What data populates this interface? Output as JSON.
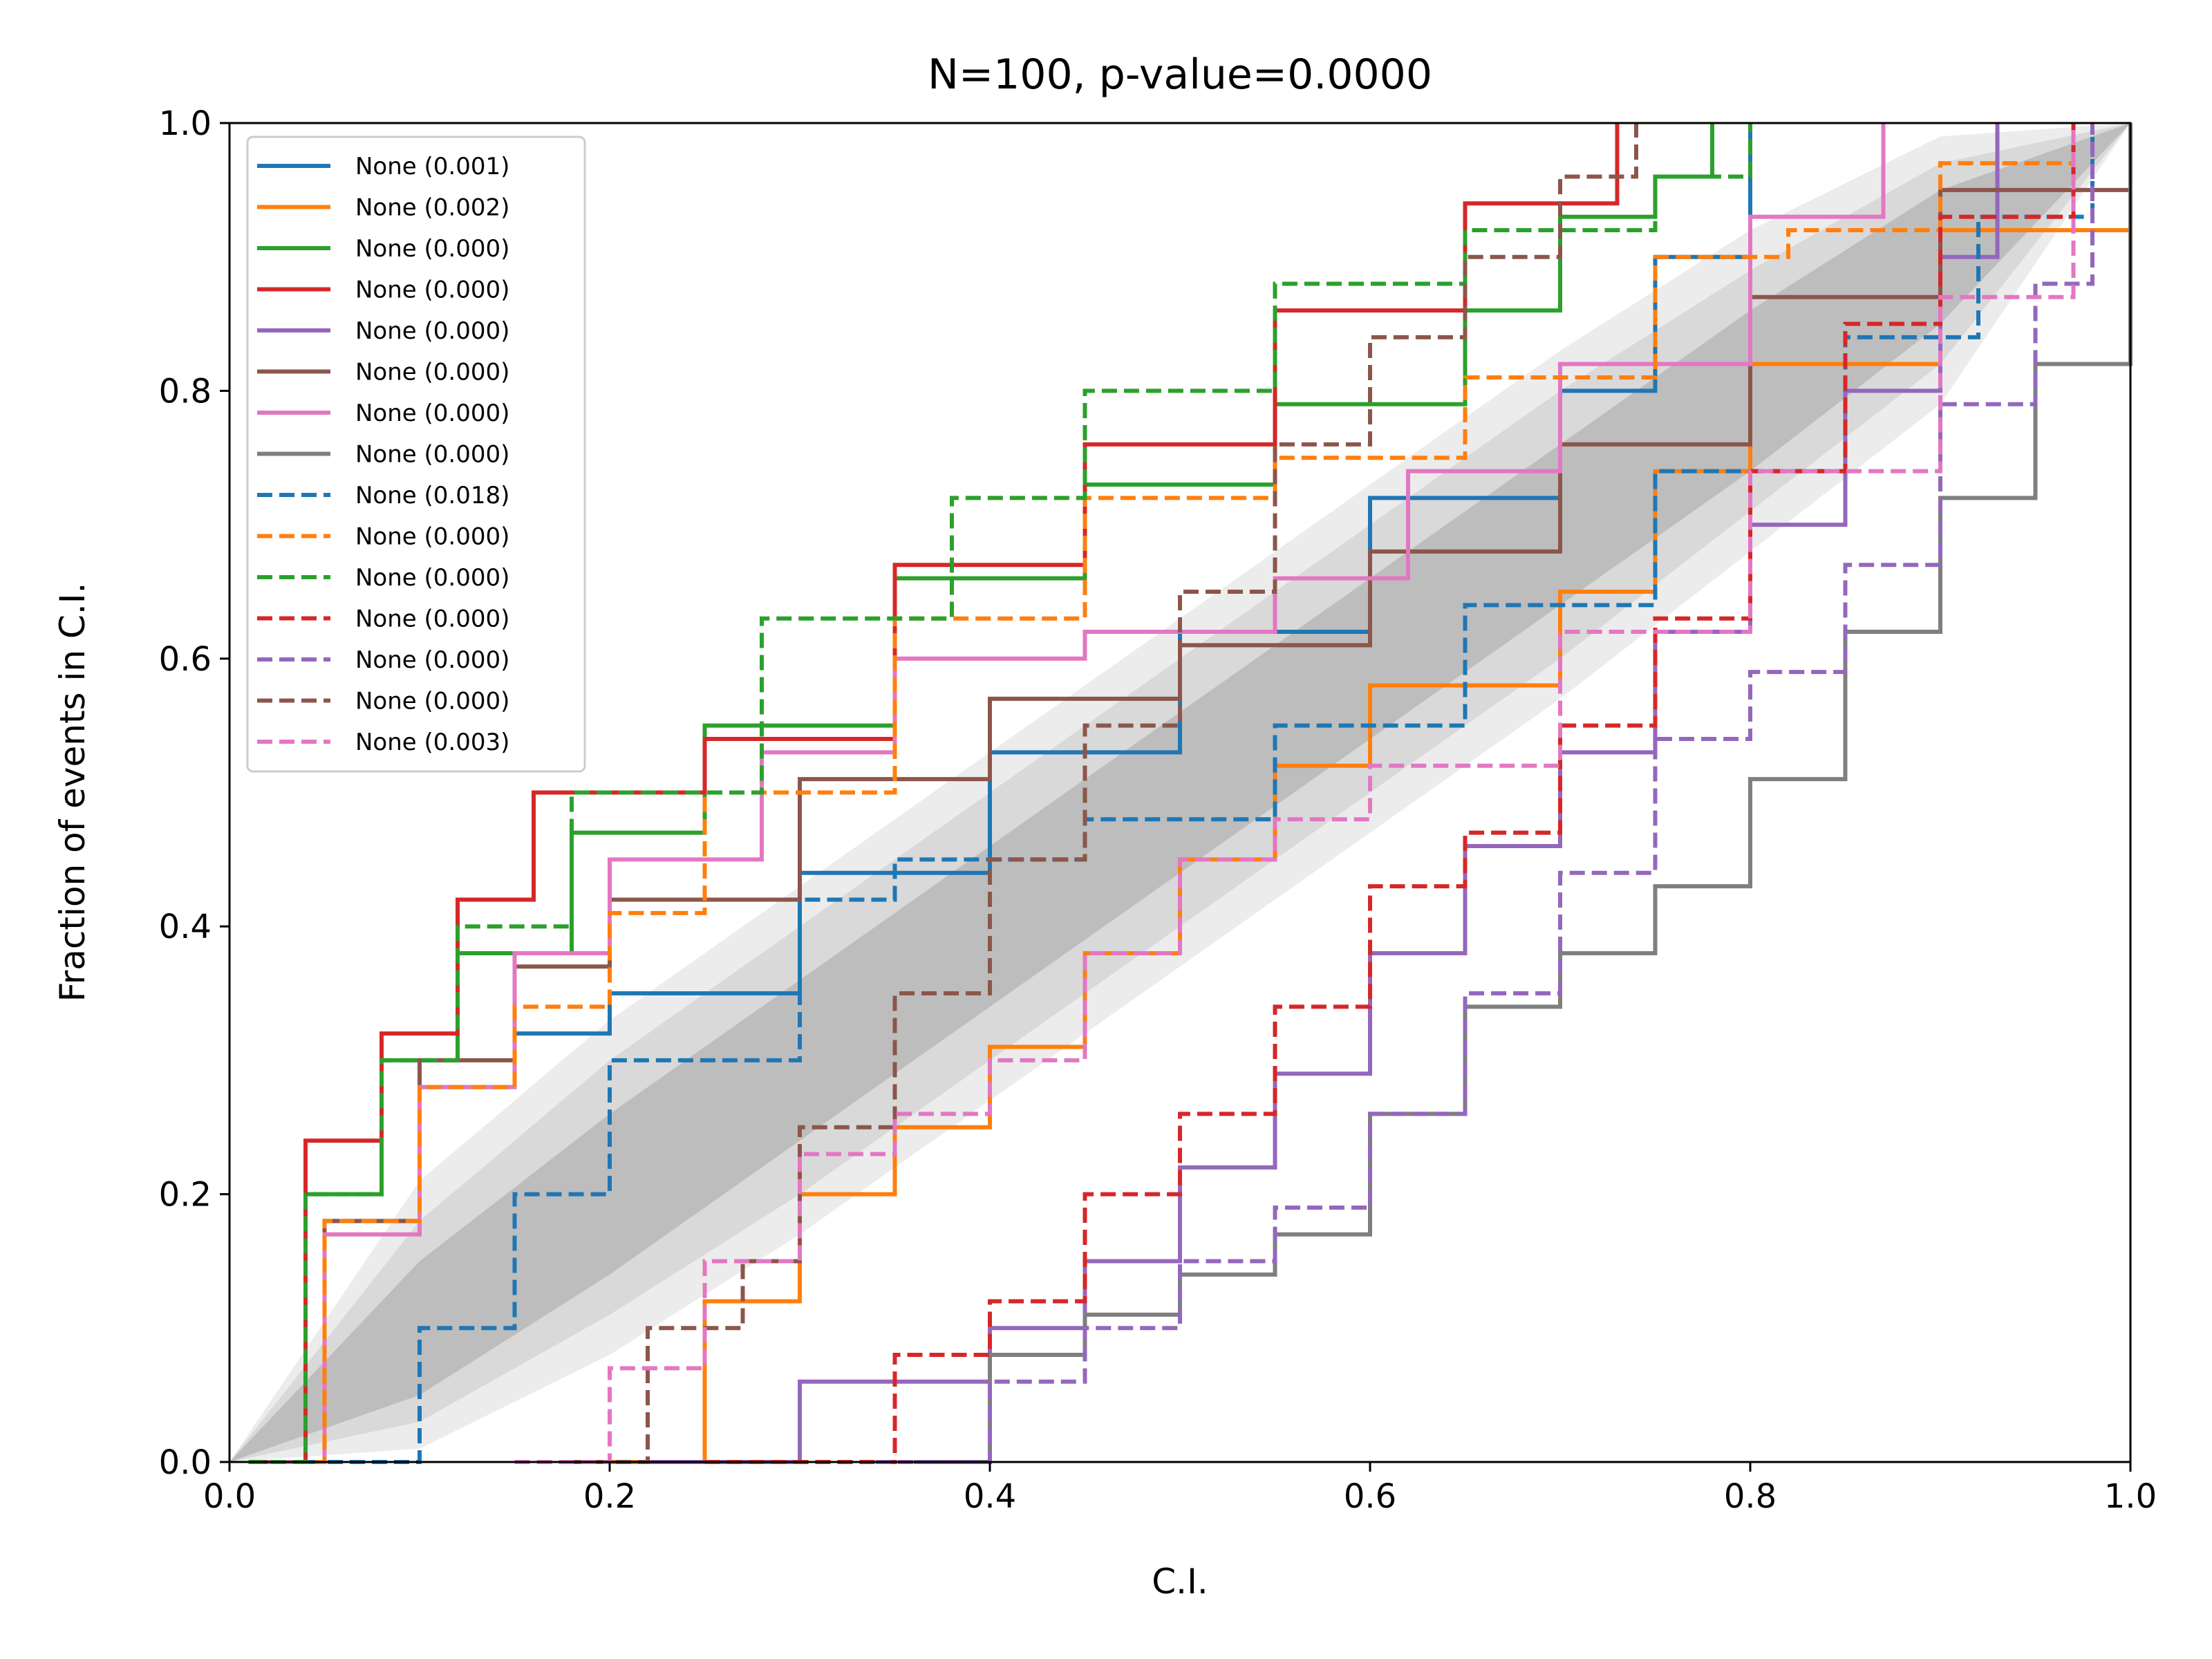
{
  "chart_data": {
    "type": "line",
    "title": "N=100, p-value=0.0000",
    "xlabel": "C.I.",
    "ylabel": "Fraction of events in C.I.",
    "xlim": [
      0,
      1
    ],
    "ylim": [
      0,
      1
    ],
    "xticks": [
      "0.0",
      "0.2",
      "0.4",
      "0.6",
      "0.8",
      "1.0"
    ],
    "yticks": [
      "0.0",
      "0.2",
      "0.4",
      "0.6",
      "0.8",
      "1.0"
    ],
    "grid": false,
    "legend_position": "upper-left",
    "confidence_bands": [
      {
        "level": "1-sigma",
        "color": "#bdbdbd",
        "lower": [
          [
            0,
            0
          ],
          [
            0.1,
            0.05
          ],
          [
            0.2,
            0.14
          ],
          [
            0.3,
            0.24
          ],
          [
            0.4,
            0.34
          ],
          [
            0.5,
            0.44
          ],
          [
            0.6,
            0.54
          ],
          [
            0.7,
            0.64
          ],
          [
            0.8,
            0.74
          ],
          [
            0.9,
            0.85
          ],
          [
            1,
            1
          ]
        ],
        "upper": [
          [
            0,
            0
          ],
          [
            0.1,
            0.15
          ],
          [
            0.2,
            0.26
          ],
          [
            0.3,
            0.36
          ],
          [
            0.4,
            0.46
          ],
          [
            0.5,
            0.56
          ],
          [
            0.6,
            0.66
          ],
          [
            0.7,
            0.76
          ],
          [
            0.8,
            0.86
          ],
          [
            0.9,
            0.95
          ],
          [
            1,
            1
          ]
        ]
      },
      {
        "level": "2-sigma",
        "color": "#d9d9d9",
        "lower": [
          [
            0,
            0
          ],
          [
            0.1,
            0.03
          ],
          [
            0.2,
            0.11
          ],
          [
            0.3,
            0.2
          ],
          [
            0.4,
            0.3
          ],
          [
            0.5,
            0.4
          ],
          [
            0.6,
            0.5
          ],
          [
            0.7,
            0.6
          ],
          [
            0.8,
            0.71
          ],
          [
            0.9,
            0.82
          ],
          [
            1,
            1
          ]
        ],
        "upper": [
          [
            0,
            0
          ],
          [
            0.1,
            0.18
          ],
          [
            0.2,
            0.3
          ],
          [
            0.3,
            0.4
          ],
          [
            0.4,
            0.5
          ],
          [
            0.5,
            0.6
          ],
          [
            0.6,
            0.7
          ],
          [
            0.7,
            0.8
          ],
          [
            0.8,
            0.89
          ],
          [
            0.9,
            0.97
          ],
          [
            1,
            1
          ]
        ]
      },
      {
        "level": "3-sigma",
        "color": "#ececec",
        "lower": [
          [
            0,
            0
          ],
          [
            0.1,
            0.01
          ],
          [
            0.2,
            0.08
          ],
          [
            0.3,
            0.17
          ],
          [
            0.4,
            0.27
          ],
          [
            0.5,
            0.37
          ],
          [
            0.6,
            0.47
          ],
          [
            0.7,
            0.57
          ],
          [
            0.8,
            0.68
          ],
          [
            0.9,
            0.79
          ],
          [
            1,
            1
          ]
        ],
        "upper": [
          [
            0,
            0
          ],
          [
            0.1,
            0.21
          ],
          [
            0.2,
            0.33
          ],
          [
            0.3,
            0.43
          ],
          [
            0.4,
            0.53
          ],
          [
            0.5,
            0.63
          ],
          [
            0.6,
            0.73
          ],
          [
            0.7,
            0.83
          ],
          [
            0.8,
            0.92
          ],
          [
            0.9,
            0.99
          ],
          [
            1,
            1
          ]
        ]
      }
    ],
    "series": [
      {
        "name": "None (0.001)",
        "color": "#1f77b4",
        "dash": "solid",
        "points": [
          [
            0.02,
            0
          ],
          [
            0.05,
            0.18
          ],
          [
            0.1,
            0.28
          ],
          [
            0.15,
            0.32
          ],
          [
            0.2,
            0.35
          ],
          [
            0.3,
            0.44
          ],
          [
            0.4,
            0.53
          ],
          [
            0.5,
            0.62
          ],
          [
            0.6,
            0.72
          ],
          [
            0.7,
            0.8
          ],
          [
            0.75,
            0.9
          ],
          [
            0.8,
            1.0
          ]
        ]
      },
      {
        "name": "None (0.002)",
        "color": "#ff7f0e",
        "dash": "solid",
        "points": [
          [
            0.2,
            0
          ],
          [
            0.25,
            0.12
          ],
          [
            0.3,
            0.2
          ],
          [
            0.35,
            0.25
          ],
          [
            0.4,
            0.31
          ],
          [
            0.45,
            0.38
          ],
          [
            0.5,
            0.45
          ],
          [
            0.55,
            0.52
          ],
          [
            0.6,
            0.58
          ],
          [
            0.7,
            0.65
          ],
          [
            0.75,
            0.74
          ],
          [
            0.8,
            0.82
          ],
          [
            0.9,
            0.92
          ],
          [
            1.0,
            1.0
          ]
        ]
      },
      {
        "name": "None (0.000)",
        "color": "#2ca02c",
        "dash": "solid",
        "points": [
          [
            0.01,
            0
          ],
          [
            0.04,
            0.2
          ],
          [
            0.08,
            0.3
          ],
          [
            0.12,
            0.38
          ],
          [
            0.18,
            0.47
          ],
          [
            0.25,
            0.55
          ],
          [
            0.35,
            0.66
          ],
          [
            0.45,
            0.73
          ],
          [
            0.55,
            0.79
          ],
          [
            0.65,
            0.86
          ],
          [
            0.7,
            0.93
          ],
          [
            0.75,
            0.96
          ],
          [
            0.78,
            1.0
          ]
        ]
      },
      {
        "name": "None (0.000)",
        "color": "#d62728",
        "dash": "solid",
        "points": [
          [
            0.01,
            0
          ],
          [
            0.04,
            0.24
          ],
          [
            0.08,
            0.32
          ],
          [
            0.12,
            0.42
          ],
          [
            0.16,
            0.5
          ],
          [
            0.25,
            0.54
          ],
          [
            0.35,
            0.67
          ],
          [
            0.45,
            0.76
          ],
          [
            0.55,
            0.86
          ],
          [
            0.65,
            0.94
          ],
          [
            0.73,
            1.0
          ]
        ]
      },
      {
        "name": "None (0.000)",
        "color": "#9467bd",
        "dash": "solid",
        "points": [
          [
            0.22,
            0
          ],
          [
            0.3,
            0.06
          ],
          [
            0.4,
            0.1
          ],
          [
            0.45,
            0.15
          ],
          [
            0.5,
            0.22
          ],
          [
            0.55,
            0.29
          ],
          [
            0.6,
            0.38
          ],
          [
            0.65,
            0.46
          ],
          [
            0.7,
            0.53
          ],
          [
            0.75,
            0.62
          ],
          [
            0.8,
            0.7
          ],
          [
            0.85,
            0.8
          ],
          [
            0.9,
            0.9
          ],
          [
            0.93,
            1.0
          ]
        ]
      },
      {
        "name": "None (0.000)",
        "color": "#8c564b",
        "dash": "solid",
        "points": [
          [
            0.01,
            0
          ],
          [
            0.05,
            0.18
          ],
          [
            0.1,
            0.3
          ],
          [
            0.15,
            0.37
          ],
          [
            0.2,
            0.42
          ],
          [
            0.3,
            0.51
          ],
          [
            0.4,
            0.57
          ],
          [
            0.5,
            0.61
          ],
          [
            0.6,
            0.68
          ],
          [
            0.7,
            0.76
          ],
          [
            0.8,
            0.87
          ],
          [
            0.9,
            0.95
          ],
          [
            1.0,
            1.0
          ]
        ]
      },
      {
        "name": "None (0.000)",
        "color": "#e377c2",
        "dash": "solid",
        "points": [
          [
            0.02,
            0
          ],
          [
            0.05,
            0.17
          ],
          [
            0.1,
            0.28
          ],
          [
            0.15,
            0.38
          ],
          [
            0.2,
            0.45
          ],
          [
            0.28,
            0.53
          ],
          [
            0.35,
            0.6
          ],
          [
            0.45,
            0.62
          ],
          [
            0.55,
            0.66
          ],
          [
            0.62,
            0.74
          ],
          [
            0.7,
            0.82
          ],
          [
            0.8,
            0.93
          ],
          [
            0.87,
            1.0
          ]
        ]
      },
      {
        "name": "None (0.000)",
        "color": "#7f7f7f",
        "dash": "solid",
        "points": [
          [
            0.36,
            0
          ],
          [
            0.4,
            0.08
          ],
          [
            0.45,
            0.11
          ],
          [
            0.5,
            0.14
          ],
          [
            0.55,
            0.17
          ],
          [
            0.6,
            0.26
          ],
          [
            0.65,
            0.34
          ],
          [
            0.7,
            0.38
          ],
          [
            0.75,
            0.43
          ],
          [
            0.8,
            0.51
          ],
          [
            0.85,
            0.62
          ],
          [
            0.9,
            0.72
          ],
          [
            0.95,
            0.82
          ],
          [
            1.0,
            1.0
          ]
        ]
      },
      {
        "name": "None (0.018)",
        "color": "#1f77b4",
        "dash": "dashed",
        "points": [
          [
            0.04,
            0
          ],
          [
            0.1,
            0.1
          ],
          [
            0.15,
            0.2
          ],
          [
            0.2,
            0.3
          ],
          [
            0.3,
            0.42
          ],
          [
            0.35,
            0.45
          ],
          [
            0.45,
            0.48
          ],
          [
            0.55,
            0.55
          ],
          [
            0.65,
            0.64
          ],
          [
            0.75,
            0.74
          ],
          [
            0.85,
            0.84
          ],
          [
            0.92,
            0.93
          ],
          [
            0.98,
            1.0
          ]
        ]
      },
      {
        "name": "None (0.000)",
        "color": "#ff7f0e",
        "dash": "dashed",
        "points": [
          [
            0.01,
            0
          ],
          [
            0.05,
            0.18
          ],
          [
            0.1,
            0.28
          ],
          [
            0.15,
            0.34
          ],
          [
            0.2,
            0.41
          ],
          [
            0.25,
            0.5
          ],
          [
            0.35,
            0.63
          ],
          [
            0.45,
            0.72
          ],
          [
            0.55,
            0.75
          ],
          [
            0.65,
            0.81
          ],
          [
            0.75,
            0.9
          ],
          [
            0.82,
            0.92
          ],
          [
            0.9,
            0.97
          ],
          [
            0.97,
            1.0
          ]
        ]
      },
      {
        "name": "None (0.000)",
        "color": "#2ca02c",
        "dash": "dashed",
        "points": [
          [
            0.01,
            0
          ],
          [
            0.04,
            0.2
          ],
          [
            0.08,
            0.3
          ],
          [
            0.12,
            0.4
          ],
          [
            0.18,
            0.5
          ],
          [
            0.28,
            0.63
          ],
          [
            0.38,
            0.72
          ],
          [
            0.45,
            0.8
          ],
          [
            0.55,
            0.88
          ],
          [
            0.65,
            0.92
          ],
          [
            0.75,
            0.96
          ],
          [
            0.8,
            1.0
          ]
        ]
      },
      {
        "name": "None (0.000)",
        "color": "#d62728",
        "dash": "dashed",
        "points": [
          [
            0.25,
            0
          ],
          [
            0.35,
            0.08
          ],
          [
            0.4,
            0.12
          ],
          [
            0.45,
            0.2
          ],
          [
            0.5,
            0.26
          ],
          [
            0.55,
            0.34
          ],
          [
            0.6,
            0.43
          ],
          [
            0.65,
            0.47
          ],
          [
            0.7,
            0.55
          ],
          [
            0.75,
            0.63
          ],
          [
            0.8,
            0.74
          ],
          [
            0.85,
            0.85
          ],
          [
            0.9,
            0.93
          ],
          [
            0.97,
            1.0
          ]
        ]
      },
      {
        "name": "None (0.000)",
        "color": "#9467bd",
        "dash": "dashed",
        "points": [
          [
            0.34,
            0
          ],
          [
            0.4,
            0.06
          ],
          [
            0.45,
            0.1
          ],
          [
            0.5,
            0.15
          ],
          [
            0.55,
            0.19
          ],
          [
            0.6,
            0.26
          ],
          [
            0.65,
            0.35
          ],
          [
            0.7,
            0.44
          ],
          [
            0.75,
            0.54
          ],
          [
            0.8,
            0.59
          ],
          [
            0.85,
            0.67
          ],
          [
            0.9,
            0.79
          ],
          [
            0.95,
            0.88
          ],
          [
            0.98,
            1.0
          ]
        ]
      },
      {
        "name": "None (0.000)",
        "color": "#8c564b",
        "dash": "dashed",
        "points": [
          [
            0.18,
            0
          ],
          [
            0.22,
            0.1
          ],
          [
            0.27,
            0.15
          ],
          [
            0.3,
            0.25
          ],
          [
            0.35,
            0.35
          ],
          [
            0.4,
            0.45
          ],
          [
            0.45,
            0.55
          ],
          [
            0.5,
            0.65
          ],
          [
            0.55,
            0.76
          ],
          [
            0.6,
            0.84
          ],
          [
            0.65,
            0.9
          ],
          [
            0.7,
            0.96
          ],
          [
            0.74,
            1.0
          ]
        ]
      },
      {
        "name": "None (0.003)",
        "color": "#e377c2",
        "dash": "dashed",
        "points": [
          [
            0.15,
            0
          ],
          [
            0.2,
            0.07
          ],
          [
            0.25,
            0.15
          ],
          [
            0.3,
            0.23
          ],
          [
            0.35,
            0.26
          ],
          [
            0.4,
            0.3
          ],
          [
            0.45,
            0.38
          ],
          [
            0.5,
            0.45
          ],
          [
            0.55,
            0.48
          ],
          [
            0.6,
            0.52
          ],
          [
            0.7,
            0.62
          ],
          [
            0.8,
            0.74
          ],
          [
            0.9,
            0.87
          ],
          [
            0.97,
            1.0
          ]
        ]
      }
    ]
  }
}
